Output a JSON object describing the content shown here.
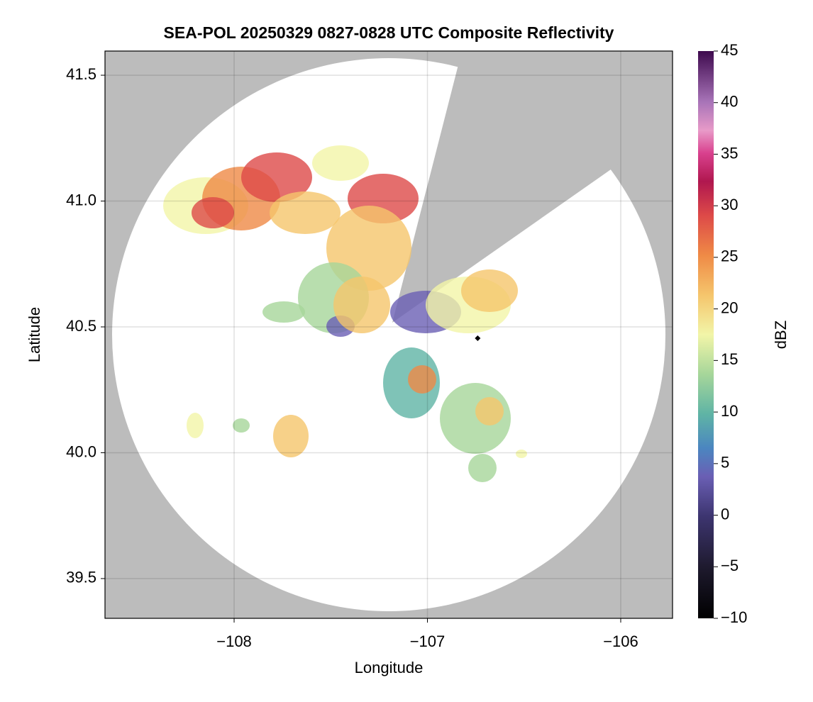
{
  "chart_data": {
    "type": "radar",
    "title": "SEA-POL 20250329 0827-0828 UTC Composite Reflectivity",
    "x_label": "Longitude",
    "y_label": "Latitude",
    "xlim": [
      -108.668,
      -105.732
    ],
    "ylim": [
      39.342,
      41.596
    ],
    "xticks": [
      {
        "value": -108,
        "label": "−108"
      },
      {
        "value": -107,
        "label": "−107"
      },
      {
        "value": -106,
        "label": "−106"
      }
    ],
    "yticks": [
      {
        "value": 39.5,
        "label": "39.5"
      },
      {
        "value": 40.0,
        "label": "40.0"
      },
      {
        "value": 40.5,
        "label": "40.5"
      },
      {
        "value": 41.0,
        "label": "41.0"
      },
      {
        "value": 41.5,
        "label": "41.5"
      }
    ],
    "grid": true,
    "marker": {
      "x": -106.74,
      "y": 40.455,
      "color": "#000000"
    },
    "colorbar": {
      "label": "dBZ",
      "lim": [
        -10,
        45
      ],
      "ticks": [
        {
          "value": -10,
          "label": "−10"
        },
        {
          "value": -5,
          "label": "−5"
        },
        0,
        5,
        10,
        15,
        20,
        25,
        30,
        35,
        40,
        45
      ]
    }
  }
}
